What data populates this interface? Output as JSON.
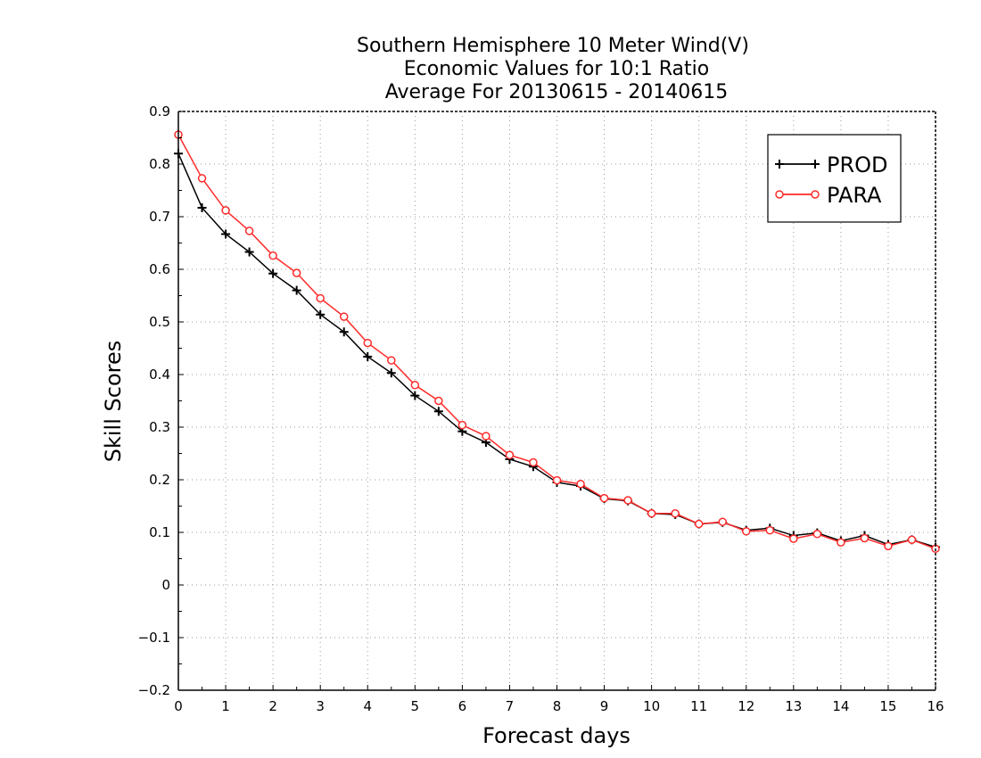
{
  "chart_data": {
    "type": "line",
    "title": [
      "Southern Hemisphere 10 Meter Wind(V)",
      "Economic Values for 10:1 Ratio",
      "Average For 20130615 - 20140615"
    ],
    "xlabel": "Forecast days",
    "ylabel": "Skill Scores",
    "xlim": [
      0,
      16
    ],
    "ylim": [
      -0.2,
      0.9
    ],
    "x_ticks": [
      0,
      1,
      2,
      3,
      4,
      5,
      6,
      7,
      8,
      9,
      10,
      11,
      12,
      13,
      14,
      15,
      16
    ],
    "x_tick_labels": [
      "0",
      "1",
      "2",
      "3",
      "4",
      "5",
      "6",
      "7",
      "8",
      "9",
      "10",
      "11",
      "12",
      "13",
      "14",
      "15",
      "16"
    ],
    "y_ticks": [
      -0.2,
      -0.1,
      0,
      0.1,
      0.2,
      0.3,
      0.4,
      0.5,
      0.6,
      0.7,
      0.8,
      0.9
    ],
    "y_tick_labels": [
      "−0.2",
      "−0.1",
      "0",
      "0.1",
      "0.2",
      "0.3",
      "0.4",
      "0.5",
      "0.6",
      "0.7",
      "0.8",
      "0.9"
    ],
    "grid": true,
    "legend_position": "top-right",
    "x": [
      0,
      0.5,
      1,
      1.5,
      2,
      2.5,
      3,
      3.5,
      4,
      4.5,
      5,
      5.5,
      6,
      6.5,
      7,
      7.5,
      8,
      8.5,
      9,
      9.5,
      10,
      10.5,
      11,
      11.5,
      12,
      12.5,
      13,
      13.5,
      14,
      14.5,
      15,
      15.5,
      16
    ],
    "series": [
      {
        "name": "PROD",
        "color": "#000000",
        "marker": "plus",
        "values": [
          0.82,
          0.717,
          0.667,
          0.633,
          0.592,
          0.56,
          0.514,
          0.481,
          0.434,
          0.403,
          0.36,
          0.33,
          0.292,
          0.271,
          0.239,
          0.225,
          0.195,
          0.188,
          0.164,
          0.16,
          0.136,
          0.134,
          0.116,
          0.119,
          0.104,
          0.108,
          0.094,
          0.099,
          0.084,
          0.094,
          0.077,
          0.086,
          0.072
        ]
      },
      {
        "name": "PARA",
        "color": "#ff2a2a",
        "marker": "circle",
        "values": [
          0.856,
          0.773,
          0.712,
          0.673,
          0.626,
          0.593,
          0.545,
          0.51,
          0.46,
          0.427,
          0.38,
          0.35,
          0.304,
          0.283,
          0.247,
          0.233,
          0.199,
          0.192,
          0.165,
          0.161,
          0.136,
          0.136,
          0.116,
          0.12,
          0.102,
          0.104,
          0.088,
          0.097,
          0.081,
          0.089,
          0.074,
          0.086,
          0.069
        ]
      }
    ]
  }
}
